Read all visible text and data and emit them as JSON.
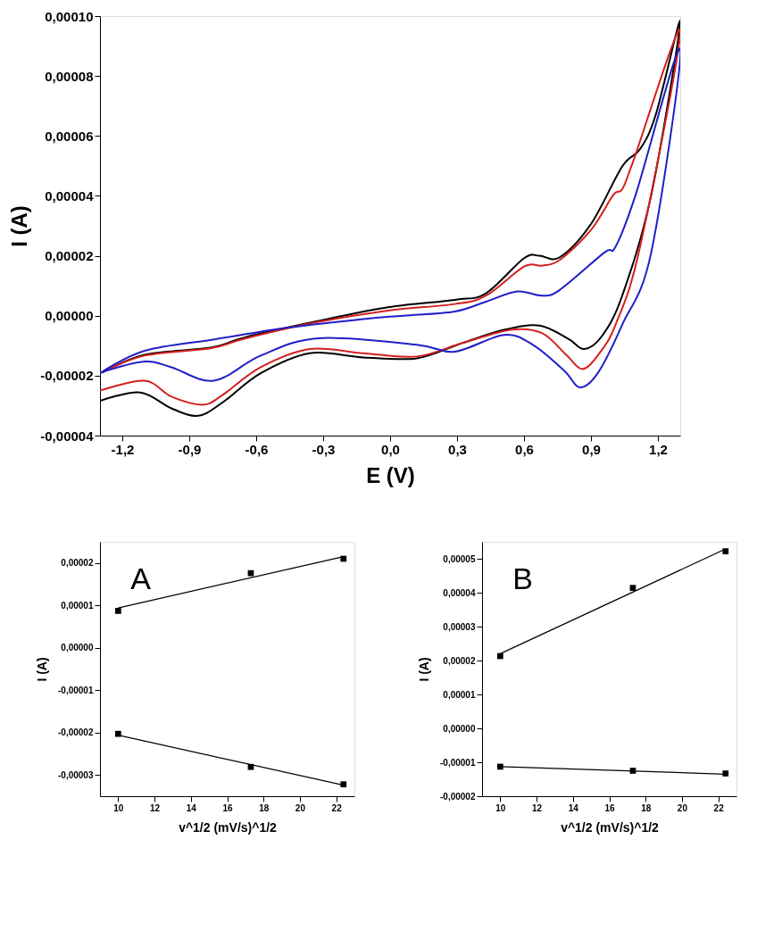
{
  "chart_data": [
    {
      "type": "line",
      "xlabel": "E (V)",
      "ylabel": "I (A)",
      "xlim": [
        -1.3,
        1.3
      ],
      "xticks": [
        {
          "value": -1.2,
          "label": "-1,2"
        },
        {
          "value": -0.9,
          "label": "-0,9"
        },
        {
          "value": -0.6,
          "label": "-0,6"
        },
        {
          "value": -0.3,
          "label": "-0,3"
        },
        {
          "value": 0,
          "label": "0,0"
        },
        {
          "value": 0.3,
          "label": "0,3"
        },
        {
          "value": 0.6,
          "label": "0,6"
        },
        {
          "value": 0.9,
          "label": "0,9"
        },
        {
          "value": 1.2,
          "label": "1,2"
        }
      ],
      "ylim": [
        -4e-05,
        0.0001
      ],
      "yticks": [
        {
          "value": -4e-05,
          "label": "-0,00004"
        },
        {
          "value": -2e-05,
          "label": "-0,00002"
        },
        {
          "value": 0,
          "label": "0,00000"
        },
        {
          "value": 2e-05,
          "label": "0,00002"
        },
        {
          "value": 4e-05,
          "label": "0,00004"
        },
        {
          "value": 6e-05,
          "label": "0,00006"
        },
        {
          "value": 8e-05,
          "label": "0,00008"
        },
        {
          "value": 0.0001,
          "label": "0,00010"
        }
      ],
      "grid": false,
      "series": [
        {
          "color": "#000000",
          "x": [
            -1.29,
            -1.1,
            -0.8,
            -0.65,
            -0.33,
            -0.01,
            0.29,
            0.43,
            0.6,
            0.67,
            0.76,
            0.9,
            1.04,
            1.12,
            1.19,
            1.3,
            1.17,
            1.04,
            0.95,
            0.87,
            0.8,
            0.67,
            0.51,
            0.32,
            0.12,
            -0.12,
            -0.36,
            -0.58,
            -0.75,
            -0.86,
            -0.98,
            -1.12,
            -1.3
          ],
          "values": [
            -1.9e-05,
            -1.3e-05,
            -1.06e-05,
            -7.2e-06,
            -1.9e-06,
            2.8e-06,
            5.3e-06,
            7.5e-06,
            1.92e-05,
            2e-05,
            1.95e-05,
            3.06e-05,
            4.98e-05,
            5.56e-05,
            6.7e-05,
            9.8e-05,
            4.03e-05,
            6.7e-06,
            -6.7e-06,
            -1.11e-05,
            -7.8e-06,
            -3.3e-06,
            -4.7e-06,
            -9.2e-06,
            -1.42e-05,
            -1.39e-05,
            -1.25e-05,
            -1.92e-05,
            -2.89e-05,
            -3.34e-05,
            -3.09e-05,
            -2.56e-05,
            -2.84e-05
          ]
        },
        {
          "color": "#d42020",
          "x": [
            -1.3,
            -1.1,
            -0.8,
            -0.65,
            -0.33,
            -0.01,
            0.29,
            0.43,
            0.6,
            0.68,
            0.76,
            0.9,
            1.0,
            1.04,
            1.09,
            1.3,
            1.12,
            1.01,
            0.93,
            0.86,
            0.79,
            0.68,
            0.54,
            0.32,
            0.12,
            -0.12,
            -0.36,
            -0.58,
            -0.75,
            -0.84,
            -0.98,
            -1.1,
            -1.3
          ],
          "values": [
            -1.92e-05,
            -1.33e-05,
            -1.08e-05,
            -7.6e-06,
            -2.2e-06,
            1.7e-06,
            3.9e-06,
            6.7e-06,
            1.64e-05,
            1.67e-05,
            1.86e-05,
            2.86e-05,
            4.03e-05,
            4.22e-05,
            5.17e-05,
            9.5e-05,
            2.3e-05,
            -3e-06,
            -1.33e-05,
            -1.78e-05,
            -1.31e-05,
            -5.8e-06,
            -4.7e-06,
            -9.2e-06,
            -1.36e-05,
            -1.25e-05,
            -1.11e-05,
            -1.72e-05,
            -2.64e-05,
            -2.97e-05,
            -2.7e-05,
            -2.17e-05,
            -2.5e-05
          ]
        },
        {
          "color": "#1f1fc8",
          "x": [
            -1.3,
            -1.1,
            -0.78,
            -0.45,
            -0.12,
            0.06,
            0.29,
            0.43,
            0.57,
            0.68,
            0.76,
            0.96,
            1.01,
            1.1,
            1.3,
            1.17,
            1.04,
            0.93,
            0.85,
            0.78,
            0.64,
            0.51,
            0.29,
            0.12,
            -0.32,
            -0.58,
            -0.79,
            -0.98,
            -1.1,
            -1.29
          ],
          "values": [
            -1.92e-05,
            -1.17e-05,
            -7.8e-06,
            -3.9e-06,
            -1.1e-06,
            0,
            1.4e-06,
            4.7e-06,
            8.1e-06,
            6.7e-06,
            8.6e-06,
            2.11e-05,
            2.3e-05,
            4.03e-05,
            8.9e-05,
            2.11e-05,
            -3e-06,
            -1.92e-05,
            -2.39e-05,
            -1.83e-05,
            -9.7e-06,
            -6.4e-06,
            -1.2e-05,
            -9.7e-06,
            -7.5e-06,
            -1.33e-05,
            -2.17e-05,
            -1.72e-05,
            -1.53e-05,
            -1.88e-05
          ]
        }
      ]
    },
    {
      "type": "scatter",
      "xlabel": "v^1/2 (mV/s)^1/2",
      "ylabel": "I (A)",
      "annotations": [
        "A"
      ],
      "xlim": [
        9,
        23
      ],
      "xticks": [
        10,
        12,
        14,
        16,
        18,
        20,
        22
      ],
      "ylim": [
        -3.5e-05,
        2.5e-05
      ],
      "yticks": [
        {
          "value": -3e-05,
          "label": "-0,00003"
        },
        {
          "value": -2e-05,
          "label": "-0,00002"
        },
        {
          "value": -1e-05,
          "label": "-0,00001"
        },
        {
          "value": 0,
          "label": "0,00000"
        },
        {
          "value": 1e-05,
          "label": "0,00001"
        },
        {
          "value": 2e-05,
          "label": "0,00002"
        }
      ],
      "grid": false,
      "series": [
        {
          "color": "#000000",
          "marker": "square",
          "x": [
            10,
            17.3,
            22.4
          ],
          "values": [
            8.7e-06,
            1.76e-05,
            2.1e-05
          ]
        },
        {
          "color": "#000000",
          "marker": "square",
          "x": [
            10,
            17.3,
            22.4
          ],
          "values": [
            -2.03e-05,
            -2.81e-05,
            -3.22e-05
          ]
        },
        {
          "type": "line",
          "marker": "none",
          "color": "#000000",
          "x": [
            10,
            22.4
          ],
          "values": [
            9.4e-06,
            2.15e-05
          ]
        },
        {
          "type": "line",
          "marker": "none",
          "color": "#000000",
          "x": [
            10,
            22.4
          ],
          "values": [
            -2.06e-05,
            -3.24e-05
          ]
        }
      ]
    },
    {
      "type": "scatter",
      "xlabel": "v^1/2 (mV/s)^1/2",
      "ylabel": "I (A)",
      "annotations": [
        "B"
      ],
      "xlim": [
        9,
        23
      ],
      "xticks": [
        10,
        12,
        14,
        16,
        18,
        20,
        22
      ],
      "ylim": [
        -2e-05,
        5.5e-05
      ],
      "yticks": [
        {
          "value": -2e-05,
          "label": "-0,00002"
        },
        {
          "value": -1e-05,
          "label": "-0,00001"
        },
        {
          "value": 0,
          "label": "0,00000"
        },
        {
          "value": 1e-05,
          "label": "0,00001"
        },
        {
          "value": 2e-05,
          "label": "0,00002"
        },
        {
          "value": 3e-05,
          "label": "0,00003"
        },
        {
          "value": 4e-05,
          "label": "0,00004"
        },
        {
          "value": 5e-05,
          "label": "0,00005"
        }
      ],
      "grid": false,
      "series": [
        {
          "color": "#000000",
          "marker": "square",
          "x": [
            10,
            17.3,
            22.4
          ],
          "values": [
            2.13e-05,
            4.14e-05,
            5.22e-05
          ]
        },
        {
          "color": "#000000",
          "marker": "square",
          "x": [
            10,
            17.3,
            22.4
          ],
          "values": [
            -1.13e-05,
            -1.25e-05,
            -1.33e-05
          ]
        },
        {
          "type": "line",
          "marker": "none",
          "color": "#000000",
          "x": [
            10,
            22.4
          ],
          "values": [
            2.2e-05,
            5.29e-05
          ]
        },
        {
          "type": "line",
          "marker": "none",
          "color": "#000000",
          "x": [
            10,
            22.4
          ],
          "values": [
            -1.13e-05,
            -1.35e-05
          ]
        }
      ]
    }
  ]
}
